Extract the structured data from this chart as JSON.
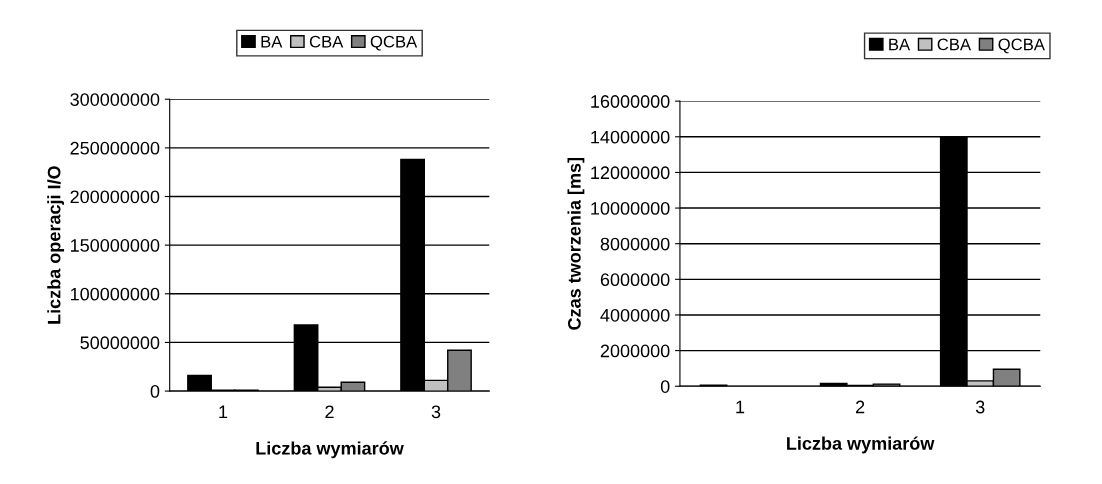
{
  "chart_data": [
    {
      "type": "bar",
      "categories": [
        "1",
        "2",
        "3"
      ],
      "xlabel": "Liczba wymiarów",
      "ylabel": "Liczba operacji I/O",
      "ylim": [
        0,
        300000000
      ],
      "yticks": [
        0,
        50000000,
        100000000,
        150000000,
        200000000,
        250000000,
        300000000
      ],
      "grid": "y",
      "legend": "top",
      "series": [
        {
          "name": "BA",
          "color": "#000000",
          "values": [
            16000000,
            68000000,
            238000000
          ]
        },
        {
          "name": "CBA",
          "color": "#c0c0c0",
          "values": [
            1000000,
            4000000,
            11000000
          ]
        },
        {
          "name": "QCBA",
          "color": "#808080",
          "values": [
            1000000,
            9000000,
            42000000
          ]
        }
      ]
    },
    {
      "type": "bar",
      "categories": [
        "1",
        "2",
        "3"
      ],
      "xlabel": "Liczba wymiarów",
      "ylabel": "Czas tworzenia [ms]",
      "ylim": [
        0,
        16000000
      ],
      "yticks": [
        0,
        2000000,
        4000000,
        6000000,
        8000000,
        10000000,
        12000000,
        14000000,
        16000000
      ],
      "grid": "y",
      "legend": "top right",
      "series": [
        {
          "name": "BA",
          "color": "#000000",
          "values": [
            60000,
            150000,
            14000000
          ]
        },
        {
          "name": "CBA",
          "color": "#c0c0c0",
          "values": [
            null,
            50000,
            300000
          ]
        },
        {
          "name": "QCBA",
          "color": "#808080",
          "values": [
            null,
            120000,
            950000
          ]
        }
      ]
    }
  ]
}
